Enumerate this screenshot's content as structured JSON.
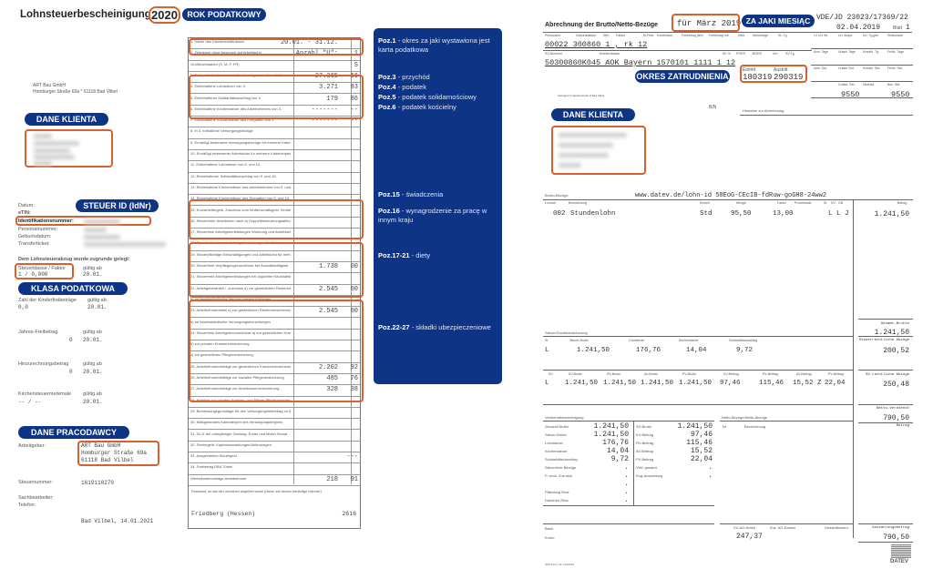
{
  "left_doc": {
    "title": "Lohnsteuerbescheinigung",
    "year": "2020",
    "year_badge": "ROK PODATKOWY",
    "employer_line1": "ART Bau GmbH",
    "employer_line2": "Homburger Straße 69a * 61118 Bad Vilbel",
    "client_badge": "DANE KLIENTA",
    "steuer_id_badge": "STEUER ID (IdNr)",
    "fields": {
      "datum": "Datum:",
      "etin": "eTIN:",
      "idnr": "Identifikationsnummer:",
      "personalnummer": "Personalnummer:",
      "geburtsdatum": "Geburtsdatum:",
      "transferticket": "Transferticket:"
    },
    "basis_heading": "Dem Lohnsteuerabzug wurde zugrunde gelegt:",
    "steuerklasse_label": "Steuerklasse / Faktor",
    "steuerklasse_value": "1 / 0,000",
    "gueltig_ab": "gültig ab",
    "gueltig_date": "20.01.",
    "class_badge": "KLASA PODATKOWA",
    "kinder_label": "Zahl der Kinderfreibeträge",
    "kinder_value": "0,0",
    "jahres_label": "Jahres-Freibetrag",
    "jahres_value": "0",
    "hinzu_label": "Hinzurechnungsbetrag",
    "hinzu_value": "0",
    "kirchen_label": "Kirchensteuermerkmale",
    "kirchen_value": "-- / --",
    "employer_badge": "DANE PRACODAWCY",
    "arbeitgeber_label": "Arbeitgeber:",
    "arbeitgeber_lines": [
      "ART Bau GmbH",
      "Homburger Straße 69a",
      "61118 Bad Vilbel"
    ],
    "steuernummer_label": "Steuernummer:",
    "steuernummer_value": "1619110270",
    "sachbearbeiter_label": "Sachbearbeiter:",
    "telefon_label": "Telefon:",
    "place_date": "Bad Vilbel, 14.01.2021",
    "form_rows": [
      {
        "label": "1. Dauer des Dienstverhältnisses",
        "value": "20.01. - 31.12.",
        "cents": ""
      },
      {
        "label": "2. Zeiträume ohne Anspruch auf Arbeitslohn",
        "value": "Anzahl \"U\":",
        "cents": "1"
      },
      {
        "label": "Großbuchstaben (S, M, F, FR)",
        "value": "",
        "cents": "S"
      },
      {
        "label": "3. Bruttoarbeitslohn einschl. Sachbezüge ohne 9. und 10.",
        "value": "27.365",
        "cents": "66"
      },
      {
        "label": "4. Einbehaltene Lohnsteuer von 3.",
        "value": "3.271",
        "cents": "83"
      },
      {
        "label": "5. Einbehaltener Solidaritätszuschlag von 3.",
        "value": "179",
        "cents": "86"
      },
      {
        "label": "6. Einbehaltene Kirchensteuer des Arbeitnehmers von 3.",
        "value": "-------",
        "cents": "--"
      },
      {
        "label": "7. Einbehaltene Kirchensteuer des Ehegatten von 3.",
        "value": "-------",
        "cents": "--"
      },
      {
        "label": "8. In 3. enthaltene Versorgungsbezüge",
        "value": "",
        "cents": ""
      },
      {
        "label": "9. Ermäßigt besteuerte Versorgungsbezüge für mehrere Kalenderjahre",
        "value": "",
        "cents": ""
      },
      {
        "label": "10. Ermäßigt besteuerter Arbeitslohn für mehrere Kalenderjahre",
        "value": "",
        "cents": ""
      },
      {
        "label": "11. Einbehaltene Lohnsteuer von 9. und 10.",
        "value": "",
        "cents": ""
      },
      {
        "label": "12. Einbehaltener Solidaritätszuschlag von 9. und 10.",
        "value": "",
        "cents": ""
      },
      {
        "label": "13. Einbehaltene Kirchensteuer des Arbeitnehmers von 9. und 10.",
        "value": "",
        "cents": ""
      },
      {
        "label": "14. Einbehaltene Kirchensteuer des Ehegatten von 9. und 10.",
        "value": "",
        "cents": ""
      },
      {
        "label": "15. Kurzarbeitergeld, Zuschuss zum Mutterschaftsgeld, Verdienstausfallentschädigung",
        "value": "",
        "cents": ""
      },
      {
        "label": "16. Steuerfreier Arbeitslohn nach a) Doppelbesteuerungsabkommen b) Auslandstätigkeitserlass",
        "value": "",
        "cents": ""
      },
      {
        "label": "17. Steuerfreie Arbeitgeberleistungen Wohnung und Arbeitsstätte",
        "value": "",
        "cents": ""
      },
      {
        "label": "18. Pauschalbesteuerte Arbeitgeberleistungen für Fahrten",
        "value": "",
        "cents": ""
      },
      {
        "label": "19. Steuerpflichtige Entschädigungen und Arbeitslohn für mehrere Kalenderjahre",
        "value": "",
        "cents": ""
      },
      {
        "label": "20. Steuerfreie Verpflegungszuschüsse bei Auswärtstätigkeit",
        "value": "1.738",
        "cents": "00"
      },
      {
        "label": "21. Steuerfreie Arbeitgeberleistungen bei doppelter Haushaltsführung",
        "value": "",
        "cents": ""
      },
      {
        "label": "22. Arbeitgeberanteil / -zuschuss a) zur gesetzlichen Rentenversicherung",
        "value": "2.545",
        "cents": "00"
      },
      {
        "label": "b) an berufsständische Versorgungseinrichtungen",
        "value": "",
        "cents": ""
      },
      {
        "label": "23. Arbeitnehmeranteil a) zur gesetzlichen Rentenversicherung",
        "value": "2.545",
        "cents": "00"
      },
      {
        "label": "b) an berufsständische Versorgungseinrichtungen",
        "value": "",
        "cents": ""
      },
      {
        "label": "24. Steuerfreie Arbeitgeberzuschüsse a) zur gesetzlichen Krankenversicherung",
        "value": "",
        "cents": ""
      },
      {
        "label": "b) zur privaten Krankenversicherung",
        "value": "",
        "cents": ""
      },
      {
        "label": "c) zur gesetzlichen Pflegeversicherung",
        "value": "",
        "cents": ""
      },
      {
        "label": "25. Arbeitnehmerbeiträge zur gesetzlichen Krankenversicherung",
        "value": "2.202",
        "cents": "92"
      },
      {
        "label": "26. Arbeitnehmerbeiträge zur sozialen Pflegeversicherung",
        "value": "485",
        "cents": "76"
      },
      {
        "label": "27. Arbeitnehmerbeiträge zur Arbeitslosenversicherung",
        "value": "328",
        "cents": "38"
      },
      {
        "label": "28. Beiträge zur privaten Kranken- und Pflege-Pflichtversicherung",
        "value": "",
        "cents": ""
      },
      {
        "label": "29. Bemessungsgrundlage für den Versorgungsfreibetrag zu 8.",
        "value": "",
        "cents": ""
      },
      {
        "label": "30. Maßgebendes Kalenderjahr des Versorgungsbeginns",
        "value": "",
        "cents": ""
      },
      {
        "label": "31. Zu 8. bei unterjähriger Zahlung: Erster und letzter Monat",
        "value": "",
        "cents": ""
      },
      {
        "label": "32. Sterbegeld; Kapitalauszahlungen/Abfindungen",
        "value": "",
        "cents": ""
      },
      {
        "label": "33. Ausgezahltes Kindergeld",
        "value": "",
        "cents": "---"
      },
      {
        "label": "34. Freibetrag DBA Türkei",
        "value": "",
        "cents": ""
      },
      {
        "label": "Werbekostenumlage Arbeitnehmer",
        "value": "218",
        "cents": "91"
      }
    ],
    "finanzamt_label": "Finanzamt, an das die Lohnsteuer abgeführt wurde (Name und dessen vierstellige Nummer)",
    "finanzamt_name": "Friedberg (Hessen)",
    "finanzamt_nr": "2616"
  },
  "panel": {
    "items": [
      {
        "key": "Poz.1",
        "text": "- okres za jaki wystawiona jest karta podatkowa"
      },
      {
        "key": "Poz.3",
        "text": "- przychód"
      },
      {
        "key": "Poz.4",
        "text": "- podatek"
      },
      {
        "key": "Poz.5",
        "text": "- podatek solidarnościowy"
      },
      {
        "key": "Poz.6",
        "text": "- podatek kościelny"
      },
      {
        "key": "Poz.15",
        "text": "- świadczenia"
      },
      {
        "key": "Poz.16",
        "text": "- wynagrodzenie za pracę w innym kraju"
      },
      {
        "key": "Poz.17-21",
        "text": "- diety"
      },
      {
        "key": "Poz.22-27",
        "text": "- składki ubezpieczeniowe"
      }
    ]
  },
  "right_doc": {
    "title": "Abrechnung der Brutto/Netto-Bezüge",
    "month": "für März 2019",
    "month_badge": "ZA JAKI MIESIĄC",
    "ref": "VDE/JD   23023/17369/22",
    "date": "02.04.2019",
    "blatt_label": "Blatt",
    "blatt": "1",
    "row1_labels": [
      "Personalnr.",
      "Geburtsdatum",
      "StKl",
      "Faktor",
      "Ki.Frbtr.",
      "Konfession",
      "Freibetrag jährl.",
      "Freibetrag mtl.",
      "DBA",
      "Steuertage",
      "St.-Tg"
    ],
    "row1_values": "00022  300860  1    ,     rk                    12",
    "row2_labels": [
      "SV-Nummer",
      "Krankenkasse",
      "KK %",
      "PGRS",
      "BGRS",
      "Um",
      "SV-Tg"
    ],
    "row2_values": "50300860K045  AOK Bayern                1570101  1111  1  12",
    "period_badge": "OKRES ZATRUDNIENIA",
    "eintritt_label": "Eintritt",
    "austritt_label": "Austritt",
    "eintritt": "180319",
    "austritt": "290319",
    "right_grid_labels": [
      "VJ Url. lfd.",
      "Url. Anspr.",
      "Url. Tg.gen.",
      "Resturlaub",
      "Anw. Tage",
      "Urlaub Tage",
      "Krankh. Tg.",
      "Fehlz. Tage",
      "Anw. Std.",
      "Urlaub Std.",
      "Krankh. Std.",
      "Fehlz. Std.",
      "Gutstd. Std.",
      "Überstd.",
      "Bez. Std."
    ],
    "std1": "9550",
    "std2": "9550",
    "address_small": "Verlagsort Industriestraße 8 Bad Vilbel",
    "bn": "B/N",
    "hinweise": "Hinweise zur Abrechnung",
    "client_badge": "DANE KLIENTA",
    "brutto_heading": "Brutto-Bezüge",
    "lohn_id": "www.datev.de/lohn-id   58EoG-CEcIB-fdRuw-goGH8-24ww2",
    "brutto_cols": [
      "Lohnart",
      "Bezeichnung",
      "Einheit",
      "Menge",
      "Faktor",
      "Prozentsatz",
      "St",
      "SV",
      "GB",
      "Betrag"
    ],
    "brutto_row": {
      "lohnart": "002",
      "bez": "Stundenlohn",
      "einheit": "Std",
      "menge": "95,50",
      "faktor": "13,00",
      "flags": "L L J",
      "betrag": "1.241,50"
    },
    "gesamt_brutto_label": "Gesamt-Brutto",
    "gesamt_brutto": "1.241,50",
    "steuer_heading": "Steuer/Sozialversicherung",
    "steuer_cols": [
      "St",
      "Steuer-Brutto",
      "Lohnsteuer",
      "Kirchensteuer",
      "Solidaritätszuschlag"
    ],
    "steuer_vals": [
      "L",
      "1.241,50",
      "176,76",
      "14,04",
      "9,72"
    ],
    "steuer_abzuege_label": "Steuerrechtliche Abzüge",
    "steuer_abzuege": "200,52",
    "sv_cols": [
      "SV",
      "KV-Brutto",
      "RV-Brutto",
      "AV-Brutto",
      "PV-Brutto",
      "KV-Beitrag",
      "RV-Beitrag",
      "AV-Beitrag",
      "PV-Beitrag"
    ],
    "sv_vals": [
      "L",
      "1.241,50",
      "1.241,50",
      "1.241,50",
      "1.241,50",
      "97,46",
      "115,46",
      "15,52 Z",
      "22,04"
    ],
    "sv_abzuege_label": "SV-rechtliche Abzüge",
    "sv_abzuege": "250,48",
    "netto_verdienst_label": "Netto-Verdienst",
    "netto_verdienst": "790,50",
    "betrag_label": "Betrag",
    "verdienst_heading": "Verdienstbescheinigung",
    "verdienst_left": [
      [
        "Gesamt-Brutto",
        "1.241,50"
      ],
      [
        "Steuer-Brutto",
        "1.241,50"
      ],
      [
        "Lohnsteuer",
        "176,76"
      ],
      [
        "Kirchensteuer",
        "14,04"
      ],
      [
        "Solidaritätszuschlag",
        "9,72"
      ],
      [
        "Steuerfreie Bezüge",
        "."
      ],
      [
        "P. versl. Zuk.stck.",
        "."
      ],
      [
        "",
        "."
      ],
      [
        "Pfändung Rest",
        "."
      ],
      [
        "Darlehen Rest",
        "."
      ]
    ],
    "verdienst_right": [
      [
        "SV-Brutto",
        "1.241,50"
      ],
      [
        "KV-Beitrag",
        "97,46"
      ],
      [
        "RV-Beitrag",
        "115,46"
      ],
      [
        "AV-Beitrag",
        "15,52"
      ],
      [
        "PV-Beitrag",
        "22,04"
      ],
      [
        "VWL gesamt",
        "."
      ],
      [
        "Kug-Auszahlung",
        "."
      ]
    ],
    "netto_heading": "Netto-Bezüge/Netto-Abzüge",
    "netto_cols": [
      "Nr",
      "Bezeichnung"
    ],
    "bank_label": "Bank",
    "konto_label": "Konto",
    "sv_ag_label": "SV-AG-Anteil",
    "zus_ag_label": "Zus. AG-Kosten",
    "gesamtkosten_label": "Gesamtkosten",
    "sv_ag": "247,37",
    "auszahlung_label": "Auszahlungsbetrag",
    "auszahlung": "790,50",
    "footer_form": "AFP Form.-Nr. LOGN14",
    "logo": "DATEV"
  }
}
